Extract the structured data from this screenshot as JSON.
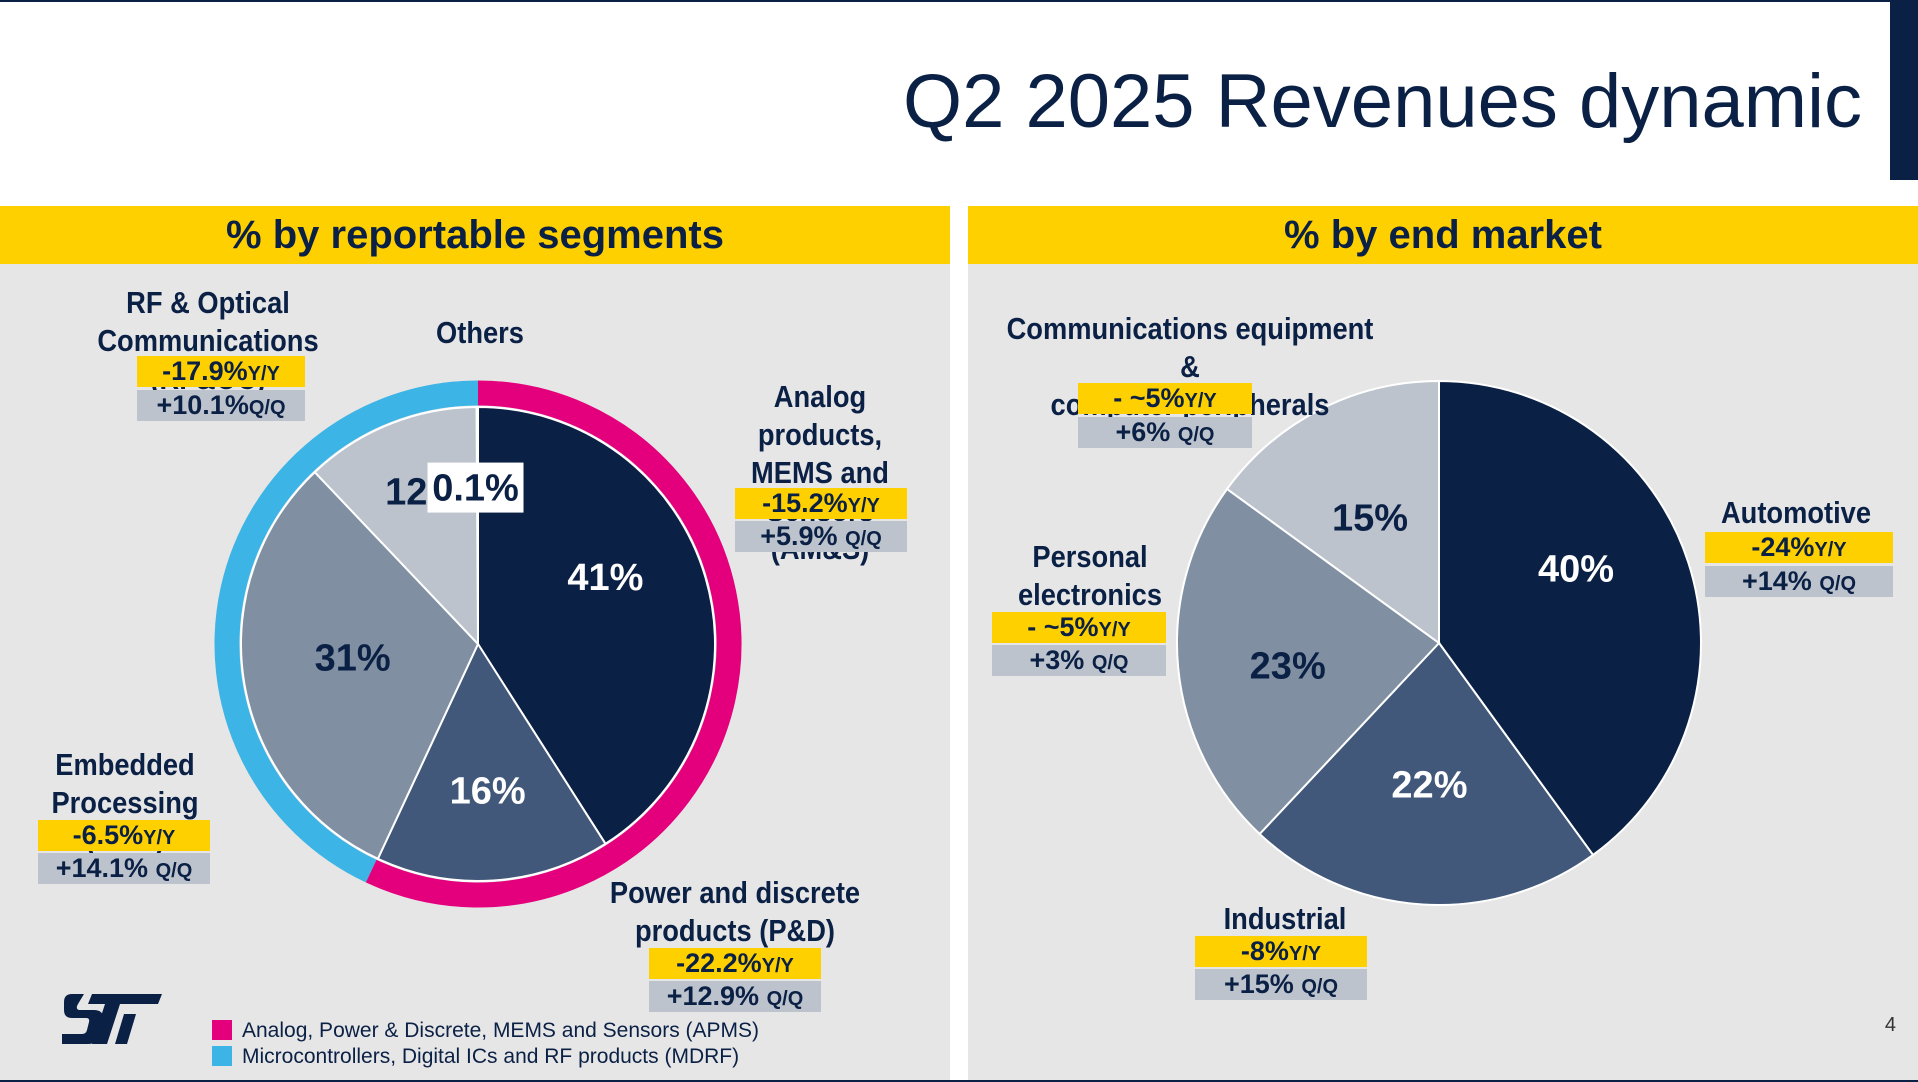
{
  "title": "Q2 2025 Revenues dynamic",
  "page_number": "4",
  "colors": {
    "navy": "#0b2045",
    "yellow": "#ffd000",
    "magenta": "#e4007c",
    "cyan": "#3cb4e5",
    "panel": "#e6e6e6",
    "slate": "#42587a",
    "grey_blue": "#8090a2",
    "light_grey": "#bcc3cd"
  },
  "left": {
    "header": "% by reportable segments",
    "labels": {
      "rfoc": "RF & Optical\nCommunications (RF&OC)",
      "others": "Others",
      "ams": "Analog products,\nMEMS and\nSensors (AM&S)",
      "emp": "Embedded\nProcessing (EMP)",
      "pd": "Power and discrete\nproducts (P&D)"
    },
    "badges": {
      "rfoc_yy": "-17.9%",
      "rfoc_qq": "+10.1%",
      "ams_yy": "-15.2%",
      "ams_qq": "+5.9%",
      "emp_yy": "-6.5%",
      "emp_qq": "+14.1%",
      "pd_yy": "-22.2%",
      "pd_qq": "+12.9%"
    },
    "legend": [
      {
        "label": "Analog, Power & Discrete, MEMS and Sensors (APMS)",
        "color": "#e4007c"
      },
      {
        "label": "Microcontrollers, Digital ICs and RF products (MDRF)",
        "color": "#3cb4e5"
      }
    ]
  },
  "right": {
    "header": "% by end market",
    "labels": {
      "comms": "Communications equipment &\ncomputer peripherals",
      "auto": "Automotive",
      "personal": "Personal\nelectronics",
      "industrial": "Industrial"
    },
    "badges": {
      "comms_yy": "- ~5%",
      "comms_qq": "+6%",
      "auto_yy": "-24%",
      "auto_qq": "+14%",
      "personal_yy": "- ~5%",
      "personal_qq": "+3%",
      "industrial_yy": "-8%",
      "industrial_qq": "+15%"
    }
  },
  "units": {
    "yy": "Y/Y",
    "qq": "Q/Q"
  },
  "chart_data": [
    {
      "type": "pie",
      "title": "% by reportable segments",
      "categories": [
        "Analog products, MEMS and Sensors (AM&S)",
        "Power and discrete products (P&D)",
        "Embedded Processing (EMP)",
        "RF & Optical Communications (RF&OC)",
        "Others"
      ],
      "values": [
        41,
        16,
        31,
        12,
        0.1
      ],
      "value_labels": [
        "41%",
        "16%",
        "31%",
        "12%",
        "0.1%"
      ],
      "slice_colors": [
        "#0b2045",
        "#42587a",
        "#8090a2",
        "#bcc3cd",
        "#bcc3cd"
      ],
      "outer_ring": [
        {
          "group": "Analog, Power & Discrete, MEMS and Sensors (APMS)",
          "value": 57,
          "color": "#e4007c"
        },
        {
          "group": "Microcontrollers, Digital ICs and RF products (MDRF)",
          "value": 43,
          "color": "#3cb4e5"
        }
      ],
      "growth": {
        "RF&OC": {
          "yy": "-17.9%",
          "qq": "+10.1%"
        },
        "AM&S": {
          "yy": "-15.2%",
          "qq": "+5.9%"
        },
        "EMP": {
          "yy": "-6.5%",
          "qq": "+14.1%"
        },
        "P&D": {
          "yy": "-22.2%",
          "qq": "+12.9%"
        }
      }
    },
    {
      "type": "pie",
      "title": "% by end market",
      "categories": [
        "Automotive",
        "Industrial",
        "Personal electronics",
        "Communications equipment & computer peripherals"
      ],
      "values": [
        40,
        22,
        23,
        15
      ],
      "value_labels": [
        "40%",
        "22%",
        "23%",
        "15%"
      ],
      "slice_colors": [
        "#0b2045",
        "#42587a",
        "#8090a2",
        "#bcc3cd"
      ],
      "growth": {
        "Automotive": {
          "yy": "-24%",
          "qq": "+14%"
        },
        "Industrial": {
          "yy": "-8%",
          "qq": "+15%"
        },
        "Personal electronics": {
          "yy": "- ~5%",
          "qq": "+3%"
        },
        "Communications equipment & computer peripherals": {
          "yy": "- ~5%",
          "qq": "+6%"
        }
      }
    }
  ]
}
